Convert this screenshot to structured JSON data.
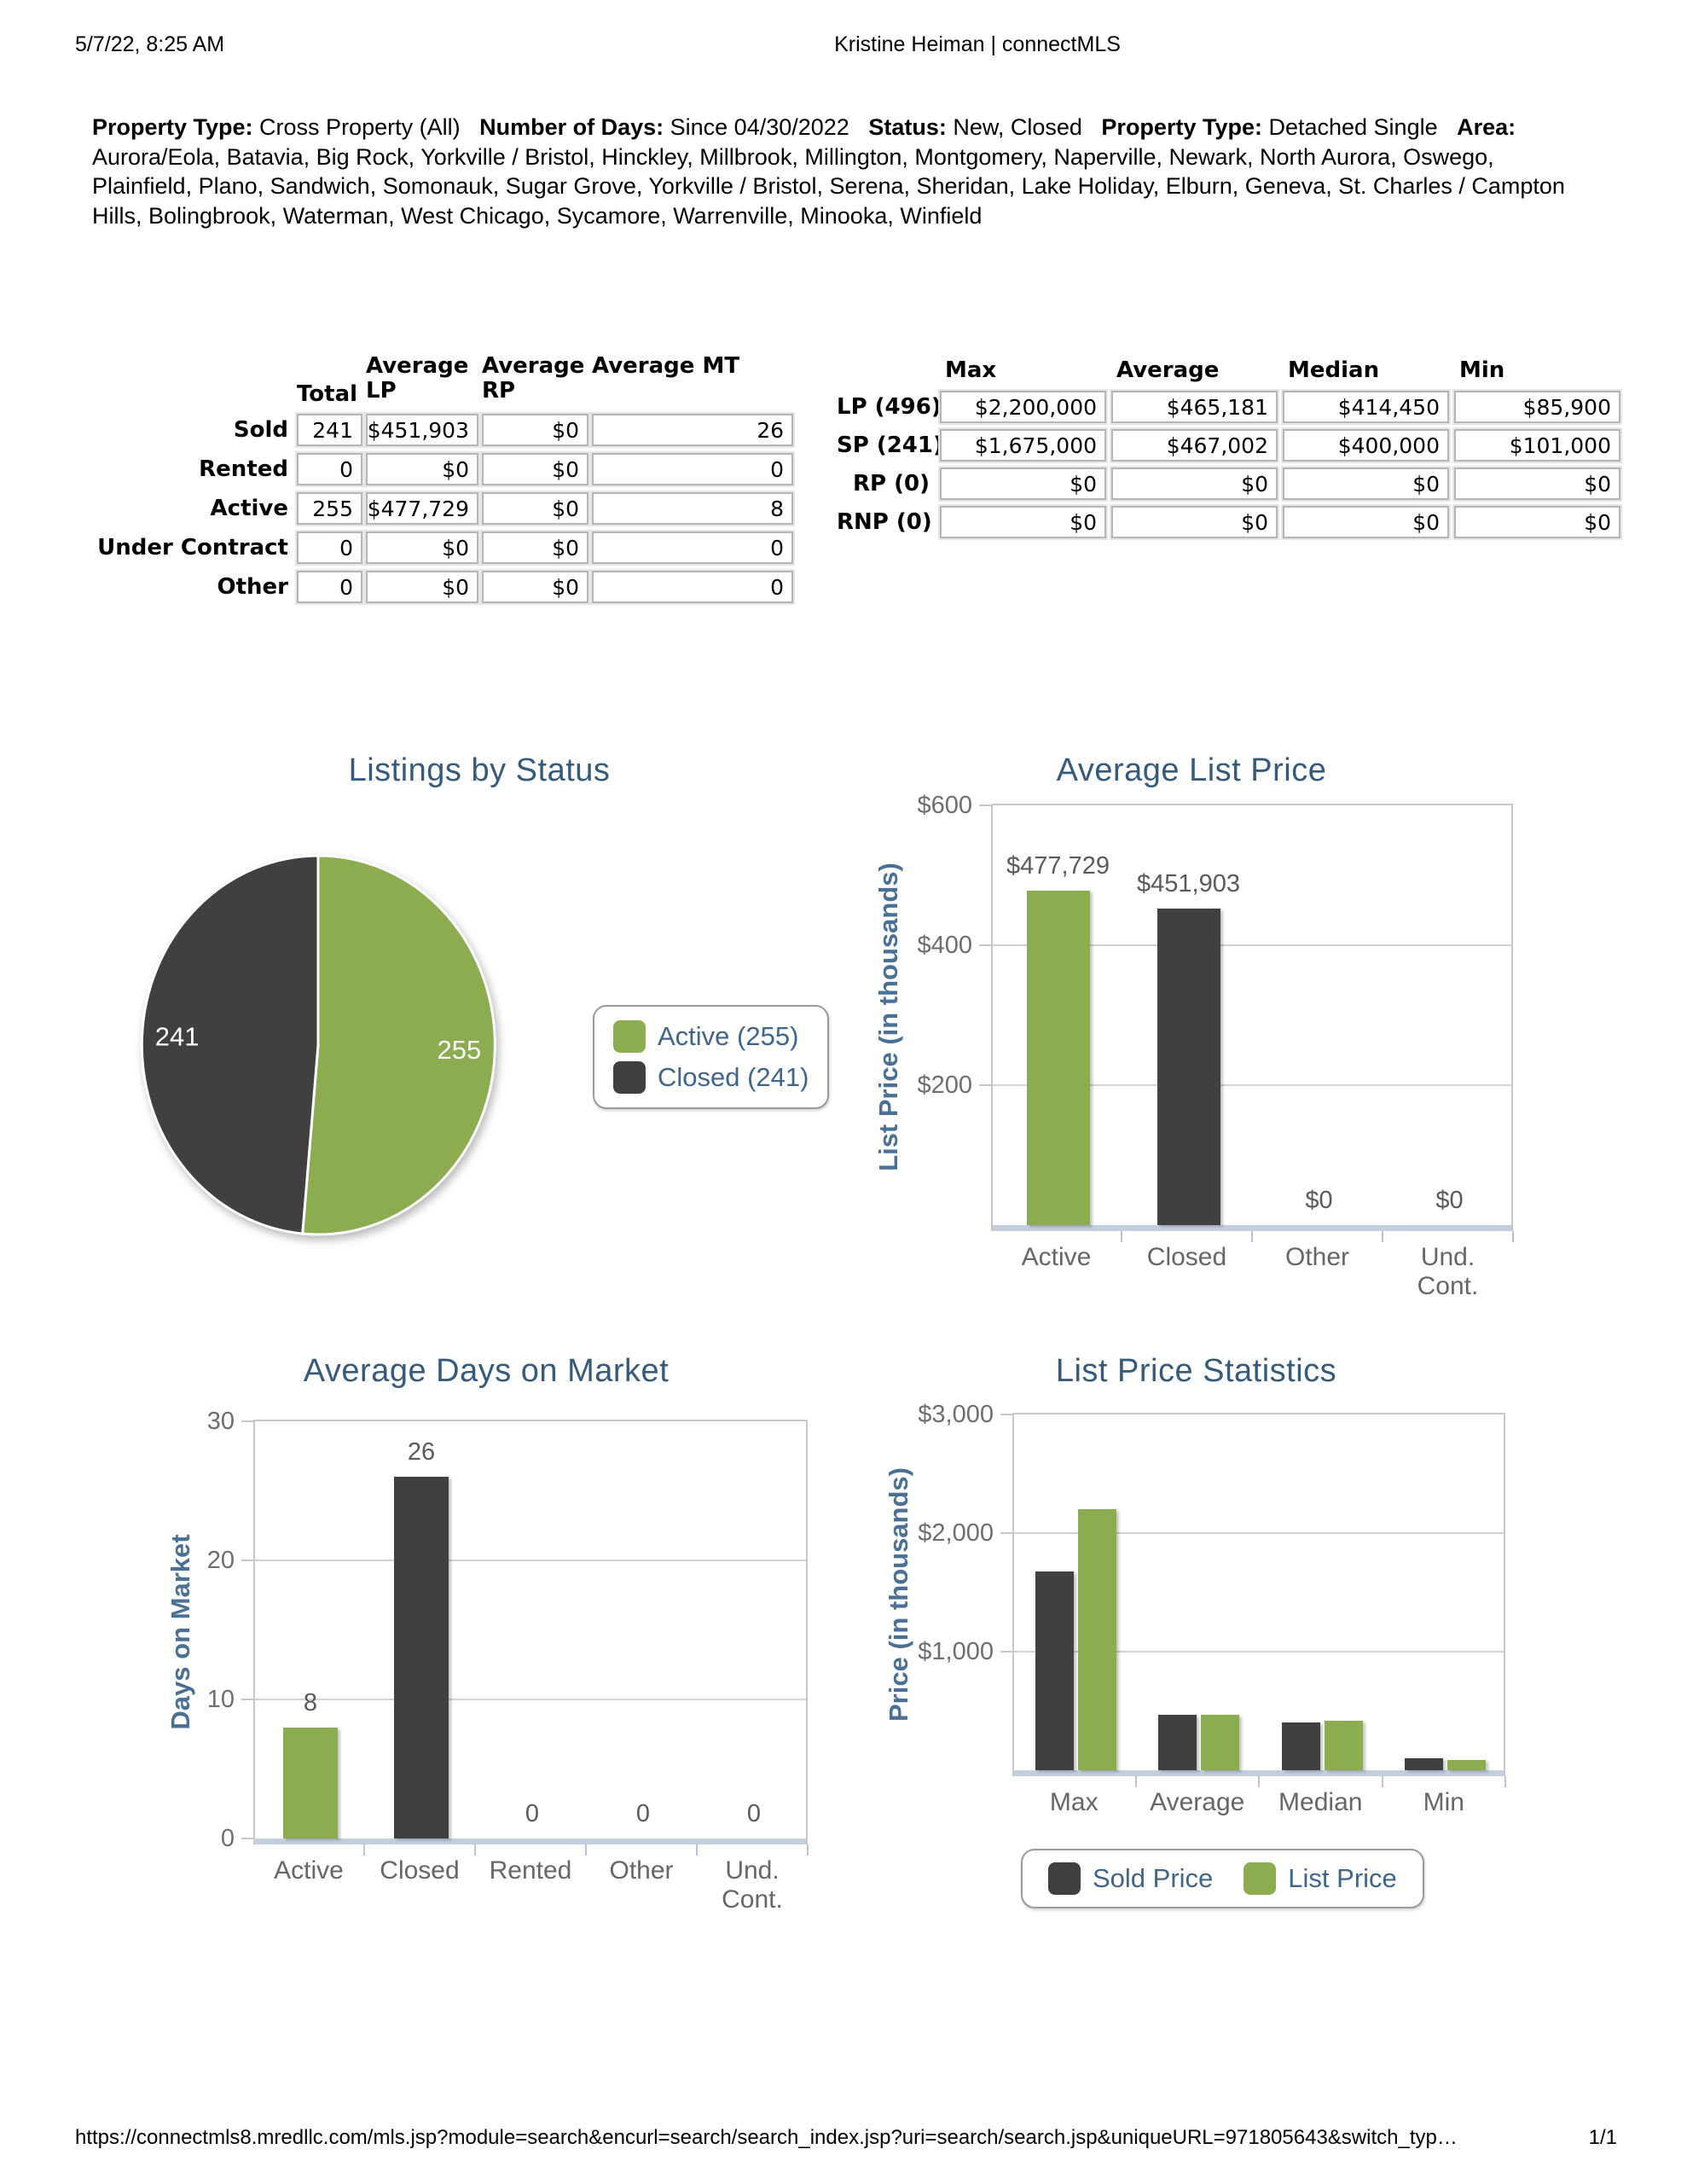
{
  "page": {
    "header": {
      "datetime": "5/7/22, 8:25 AM",
      "title": "Kristine Heiman | connectMLS"
    },
    "footer": {
      "url": "https://connectmls8.mredllc.com/mls.jsp?module=search&encurl=search/search_index.jsp?uri=search/search.jsp&uniqueURL=971805643&switch_typ…",
      "page_indicator": "1/1"
    }
  },
  "criteria": {
    "segments": [
      {
        "label": "Property Type:",
        "value": "Cross Property (All)"
      },
      {
        "label": "Number of Days:",
        "value": "Since 04/30/2022"
      },
      {
        "label": "Status:",
        "value": "New, Closed"
      },
      {
        "label": "Property Type:",
        "value": "Detached Single"
      },
      {
        "label": "Area:",
        "value": "Aurora/Eola, Batavia, Big Rock, Yorkville / Bristol, Hinckley, Millbrook, Millington, Montgomery, Naperville, Newark, North Aurora, Oswego, Plainfield, Plano, Sandwich, Somonauk, Sugar Grove, Yorkville / Bristol, Serena, Sheridan, Lake Holiday, Elburn, Geneva, St. Charles / Campton Hills, Bolingbrook, Waterman, West Chicago, Sycamore, Warrenville, Minooka, Winfield"
      }
    ]
  },
  "status_table": {
    "columns": [
      "Total",
      "Average LP",
      "Average RP",
      "Average MT"
    ],
    "rows": [
      {
        "label": "Sold",
        "values": [
          "241",
          "$451,903",
          "$0",
          "26"
        ]
      },
      {
        "label": "Rented",
        "values": [
          "0",
          "$0",
          "$0",
          "0"
        ]
      },
      {
        "label": "Active",
        "values": [
          "255",
          "$477,729",
          "$0",
          "8"
        ]
      },
      {
        "label": "Under Contract",
        "values": [
          "0",
          "$0",
          "$0",
          "0"
        ]
      },
      {
        "label": "Other",
        "values": [
          "0",
          "$0",
          "$0",
          "0"
        ]
      }
    ]
  },
  "price_table": {
    "columns": [
      "Max",
      "Average",
      "Median",
      "Min"
    ],
    "rows": [
      {
        "label": "LP (496)",
        "values": [
          "$2,200,000",
          "$465,181",
          "$414,450",
          "$85,900"
        ]
      },
      {
        "label": "SP (241)",
        "values": [
          "$1,675,000",
          "$467,002",
          "$400,000",
          "$101,000"
        ]
      },
      {
        "label": "RP (0)",
        "values": [
          "$0",
          "$0",
          "$0",
          "$0"
        ]
      },
      {
        "label": "RNP (0)",
        "values": [
          "$0",
          "$0",
          "$0",
          "$0"
        ]
      }
    ]
  },
  "colors": {
    "green": "#8bac4f",
    "dark": "#404040",
    "chart_title": "#365a7c",
    "axis_title": "#4a7195",
    "legend_text": "#40658c",
    "baseline": "#c3cede"
  },
  "chart_data": [
    {
      "type": "pie",
      "title": "Listings by Status",
      "slices": [
        {
          "label": "Active",
          "value": 255,
          "display": "255",
          "color": "green"
        },
        {
          "label": "Closed",
          "value": 241,
          "display": "241",
          "color": "dark"
        }
      ],
      "legend": [
        {
          "label": "Active (255)",
          "color": "green"
        },
        {
          "label": "Closed (241)",
          "color": "dark"
        }
      ],
      "legend_position": "right"
    },
    {
      "type": "bar",
      "title": "Average List Price",
      "ylabel": "List Price (in thousands)",
      "ylim": [
        0,
        600
      ],
      "grid": true,
      "yticks": [
        {
          "label": "$600",
          "value": 600
        },
        {
          "label": "$400",
          "value": 400
        },
        {
          "label": "$200",
          "value": 200
        }
      ],
      "categories": [
        "Active",
        "Closed",
        "Other",
        "Und.\nCont."
      ],
      "values": [
        477.729,
        451.903,
        0,
        0
      ],
      "value_labels": [
        "$477,729",
        "$451,903",
        "$0",
        "$0"
      ],
      "bar_colors": [
        "green",
        "dark",
        "green",
        "dark"
      ],
      "legend_position": "none"
    },
    {
      "type": "bar",
      "title": "Average Days on Market",
      "ylabel": "Days on Market",
      "ylim": [
        0,
        30
      ],
      "grid": true,
      "yticks": [
        {
          "label": "30",
          "value": 30
        },
        {
          "label": "20",
          "value": 20
        },
        {
          "label": "10",
          "value": 10
        },
        {
          "label": "0",
          "value": 0
        }
      ],
      "categories": [
        "Active",
        "Closed",
        "Rented",
        "Other",
        "Und.\nCont."
      ],
      "values": [
        8,
        26,
        0,
        0,
        0
      ],
      "value_labels": [
        "8",
        "26",
        "0",
        "0",
        "0"
      ],
      "bar_colors": [
        "green",
        "dark",
        "green",
        "dark",
        "green"
      ],
      "legend_position": "none"
    },
    {
      "type": "grouped_bar",
      "title": "List Price Statistics",
      "ylabel": "Price (in thousands)",
      "ylim": [
        0,
        3000
      ],
      "grid": true,
      "yticks": [
        {
          "label": "$3,000",
          "value": 3000
        },
        {
          "label": "$2,000",
          "value": 2000
        },
        {
          "label": "$1,000",
          "value": 1000
        }
      ],
      "categories": [
        "Max",
        "Average",
        "Median",
        "Min"
      ],
      "series": [
        {
          "name": "Sold Price",
          "color": "dark",
          "values": [
            1675,
            467.002,
            400,
            101
          ]
        },
        {
          "name": "List Price",
          "color": "green",
          "values": [
            2200,
            465.181,
            414.45,
            85.9
          ]
        }
      ],
      "legend": [
        {
          "label": "Sold Price",
          "color": "dark"
        },
        {
          "label": "List Price",
          "color": "green"
        }
      ],
      "legend_position": "bottom"
    }
  ]
}
